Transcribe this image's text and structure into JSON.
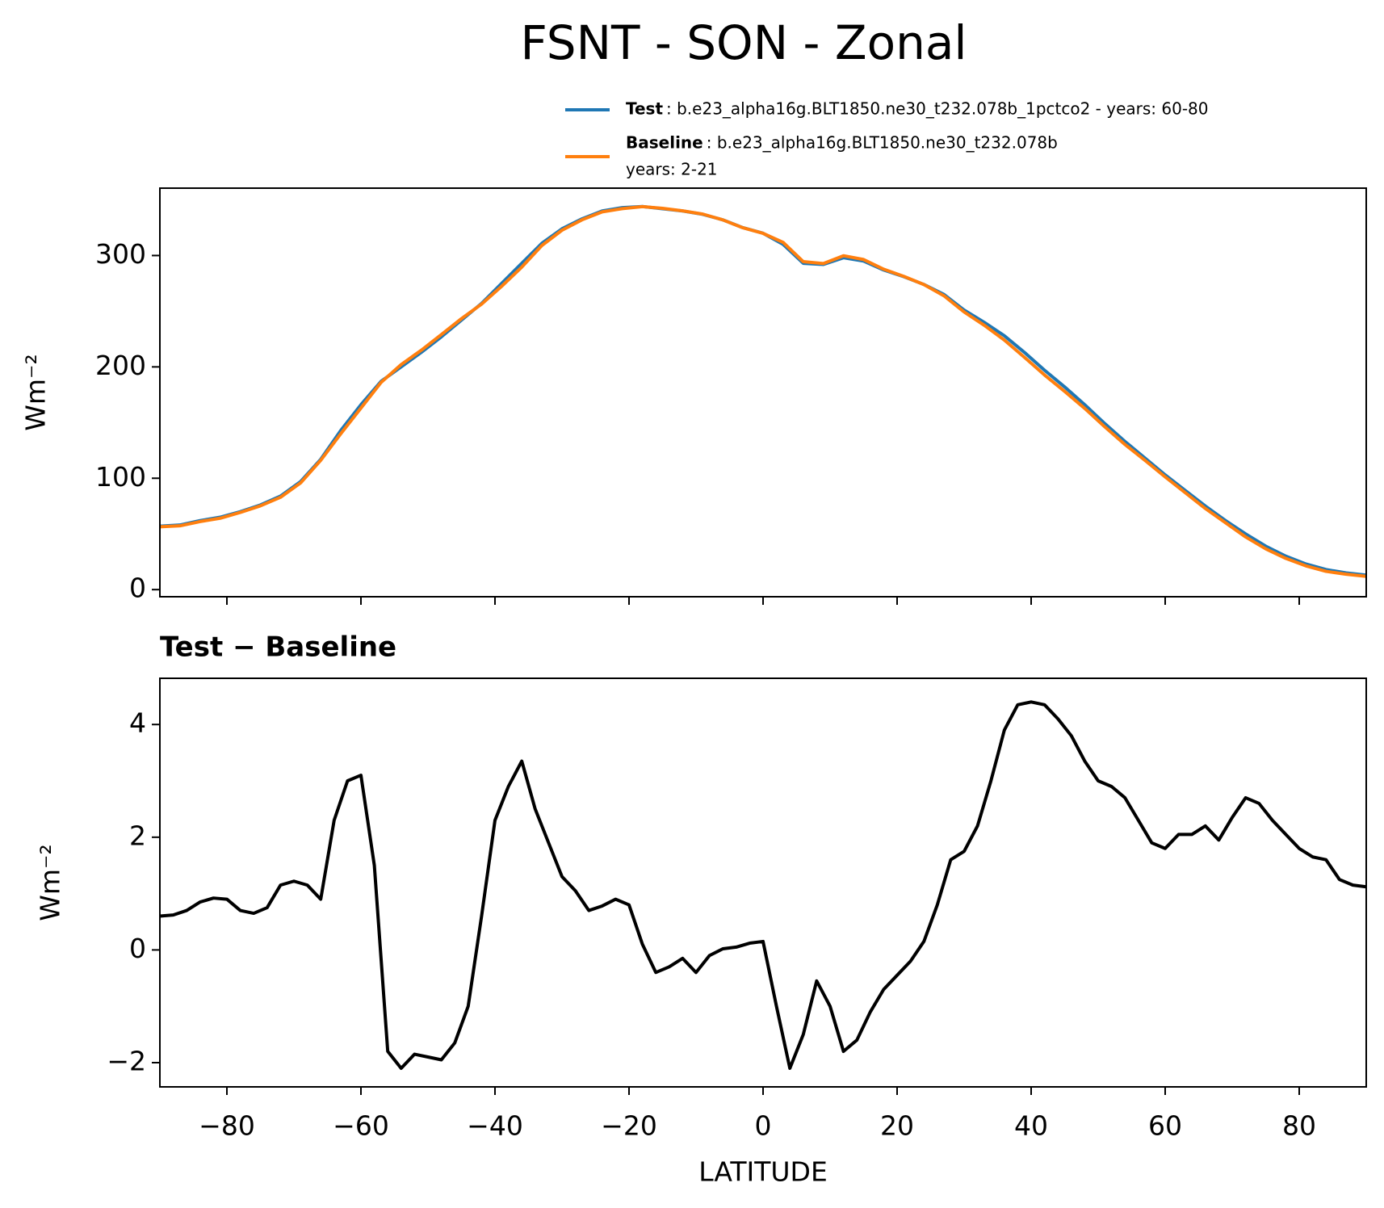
{
  "chart_data": [
    {
      "type": "line",
      "title": "FSNT - SON - Zonal",
      "ylabel": "Wm⁻²",
      "x": [
        -90,
        -87,
        -84,
        -81,
        -78,
        -75,
        -72,
        -69,
        -66,
        -63,
        -60,
        -57,
        -54,
        -51,
        -48,
        -45,
        -42,
        -39,
        -36,
        -33,
        -30,
        -27,
        -24,
        -21,
        -18,
        -15,
        -12,
        -9,
        -6,
        -3,
        0,
        3,
        6,
        9,
        12,
        15,
        18,
        21,
        24,
        27,
        30,
        33,
        36,
        39,
        42,
        45,
        48,
        51,
        54,
        57,
        60,
        63,
        66,
        69,
        72,
        75,
        78,
        81,
        84,
        87,
        90
      ],
      "series": [
        {
          "name": "Test",
          "description": ": b.e23_alpha16g.BLT1850.ne30_t232.078b_1pctco2 - years: 60-80",
          "color": "#1f77b4",
          "values": [
            57,
            58,
            62,
            65,
            70,
            76,
            84,
            97,
            117,
            143,
            166,
            187,
            200,
            213,
            227,
            242,
            257,
            275,
            293,
            311,
            324,
            333,
            340,
            343,
            344,
            342,
            340,
            337,
            332,
            325,
            320,
            310,
            293,
            292,
            298,
            295,
            287,
            281,
            274,
            265,
            251,
            240,
            228,
            213,
            197,
            182,
            166,
            149,
            133,
            118,
            103,
            89,
            75,
            62,
            50,
            39,
            30,
            23,
            18,
            15,
            13
          ]
        },
        {
          "name": "Baseline",
          "description": [
            ": b.e23_alpha16g.BLT1850.ne30_t232.078b",
            "years: 2-21"
          ],
          "color": "#ff7f0e",
          "values": [
            56.4,
            57.3,
            61.1,
            64.1,
            69.3,
            75.2,
            82.9,
            95.8,
            116.1,
            140.0,
            163.0,
            186.0,
            202.1,
            214.9,
            229.0,
            243.3,
            256.4,
            272.4,
            289.6,
            309.0,
            322.7,
            332.1,
            339.2,
            342.1,
            343.9,
            342.4,
            340.1,
            337.2,
            332.0,
            324.9,
            319.9,
            311.8,
            294.5,
            292.8,
            299.8,
            296.4,
            287.7,
            281.3,
            273.9,
            263.8,
            249.3,
            237.4,
            224.1,
            208.6,
            192.7,
            178.0,
            162.7,
            146.1,
            130.3,
            116.0,
            101.2,
            87.0,
            72.8,
            60.0,
            47.3,
            36.6,
            28.0,
            21.3,
            16.4,
            13.8,
            11.9
          ]
        }
      ],
      "xlim": [
        -90,
        90
      ],
      "xticks": [
        -80,
        -60,
        -40,
        -20,
        0,
        20,
        40,
        60,
        80
      ],
      "show_xtick_labels": false,
      "ylim": [
        -6.4,
        360.5
      ],
      "yticks": [
        0,
        100,
        200,
        300
      ],
      "legend": "top-right"
    },
    {
      "type": "line",
      "title": "Test − Baseline",
      "ylabel": "Wm⁻²",
      "xlabel": "LATITUDE",
      "x": [
        -90,
        -88,
        -86,
        -84,
        -82,
        -80,
        -78,
        -76,
        -74,
        -72,
        -70,
        -68,
        -66,
        -64,
        -62,
        -60,
        -58,
        -56,
        -54,
        -52,
        -50,
        -48,
        -46,
        -44,
        -42,
        -40,
        -38,
        -36,
        -34,
        -32,
        -30,
        -28,
        -26,
        -24,
        -22,
        -20,
        -18,
        -16,
        -14,
        -12,
        -10,
        -8,
        -6,
        -4,
        -2,
        0,
        2,
        4,
        6,
        8,
        10,
        12,
        14,
        16,
        18,
        20,
        22,
        24,
        26,
        28,
        30,
        32,
        34,
        36,
        38,
        40,
        42,
        44,
        46,
        48,
        50,
        52,
        54,
        56,
        58,
        60,
        62,
        64,
        66,
        68,
        70,
        72,
        74,
        76,
        78,
        80,
        82,
        84,
        86,
        88,
        90
      ],
      "series": [
        {
          "color": "#000000",
          "values": [
            0.6,
            0.62,
            0.7,
            0.85,
            0.92,
            0.9,
            0.7,
            0.65,
            0.75,
            1.15,
            1.22,
            1.15,
            0.9,
            2.3,
            3.0,
            3.1,
            1.5,
            -1.8,
            -2.1,
            -1.85,
            -1.9,
            -1.95,
            -1.65,
            -1.0,
            0.6,
            2.3,
            2.9,
            3.35,
            2.5,
            1.9,
            1.3,
            1.05,
            0.7,
            0.78,
            0.9,
            0.8,
            0.1,
            -0.4,
            -0.3,
            -0.15,
            -0.4,
            -0.1,
            0.02,
            0.05,
            0.12,
            0.15,
            -1.0,
            -2.1,
            -1.5,
            -0.55,
            -1.0,
            -1.8,
            -1.6,
            -1.1,
            -0.7,
            -0.45,
            -0.2,
            0.15,
            0.8,
            1.6,
            1.75,
            2.2,
            3.0,
            3.9,
            4.35,
            4.4,
            4.35,
            4.1,
            3.8,
            3.35,
            3.0,
            2.9,
            2.7,
            2.3,
            1.9,
            1.8,
            2.05,
            2.05,
            2.2,
            1.95,
            2.35,
            2.7,
            2.6,
            2.3,
            2.05,
            1.8,
            1.65,
            1.6,
            1.25,
            1.15,
            1.12
          ]
        }
      ],
      "xlim": [
        -90,
        90
      ],
      "xticks": [
        {
          "value": -80,
          "label": "−80"
        },
        {
          "value": -60,
          "label": "−60"
        },
        {
          "value": -40,
          "label": "−40"
        },
        {
          "value": -20,
          "label": "−20"
        },
        0,
        20,
        40,
        60,
        80
      ],
      "show_xtick_labels": true,
      "ylim": [
        -2.43,
        4.82
      ],
      "yticks": [
        {
          "value": -2,
          "label": "−2"
        },
        0,
        2,
        4
      ]
    }
  ]
}
